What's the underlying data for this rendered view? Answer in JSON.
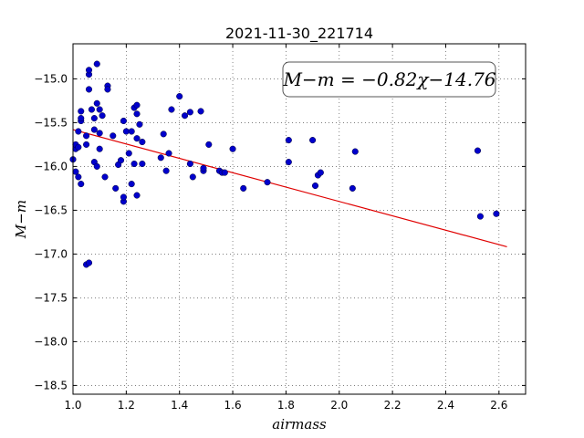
{
  "chart_data": {
    "type": "scatter",
    "title": "2021-11-30_221714",
    "xlabel": "airmass",
    "ylabel": "M−m",
    "xlim": [
      1.0,
      2.7
    ],
    "ylim": [
      -18.6,
      -14.6
    ],
    "xticks": [
      "1.0",
      "1.2",
      "1.4",
      "1.6",
      "1.8",
      "2.0",
      "2.2",
      "2.4",
      "2.6"
    ],
    "yticks": [
      "−15.0",
      "−15.5",
      "−16.0",
      "−16.5",
      "−17.0",
      "−17.5",
      "−18.0",
      "−18.5"
    ],
    "grid": true,
    "annotation": "M−m = −0.82χ−14.76",
    "fit": {
      "slope": -0.82,
      "intercept": -14.76,
      "x_range": [
        1.0,
        2.63
      ],
      "color": "#e00000"
    },
    "point_color": "#0000cc",
    "points": [
      [
        1.0,
        -15.92
      ],
      [
        1.01,
        -16.06
      ],
      [
        1.01,
        -15.8
      ],
      [
        1.01,
        -15.75
      ],
      [
        1.02,
        -15.6
      ],
      [
        1.02,
        -16.12
      ],
      [
        1.02,
        -15.78
      ],
      [
        1.03,
        -15.48
      ],
      [
        1.03,
        -15.45
      ],
      [
        1.03,
        -15.37
      ],
      [
        1.03,
        -16.2
      ],
      [
        1.05,
        -15.65
      ],
      [
        1.05,
        -15.75
      ],
      [
        1.05,
        -17.12
      ],
      [
        1.06,
        -17.1
      ],
      [
        1.06,
        -14.95
      ],
      [
        1.06,
        -14.9
      ],
      [
        1.06,
        -15.12
      ],
      [
        1.07,
        -15.35
      ],
      [
        1.08,
        -15.45
      ],
      [
        1.08,
        -15.95
      ],
      [
        1.08,
        -15.58
      ],
      [
        1.09,
        -14.83
      ],
      [
        1.09,
        -15.28
      ],
      [
        1.09,
        -16.0
      ],
      [
        1.1,
        -15.8
      ],
      [
        1.1,
        -15.62
      ],
      [
        1.1,
        -15.35
      ],
      [
        1.11,
        -15.42
      ],
      [
        1.12,
        -16.12
      ],
      [
        1.13,
        -15.08
      ],
      [
        1.13,
        -15.12
      ],
      [
        1.15,
        -15.65
      ],
      [
        1.16,
        -16.25
      ],
      [
        1.17,
        -15.98
      ],
      [
        1.18,
        -15.93
      ],
      [
        1.19,
        -16.4
      ],
      [
        1.19,
        -16.35
      ],
      [
        1.19,
        -15.48
      ],
      [
        1.2,
        -15.6
      ],
      [
        1.21,
        -15.85
      ],
      [
        1.22,
        -16.2
      ],
      [
        1.22,
        -15.6
      ],
      [
        1.23,
        -15.97
      ],
      [
        1.23,
        -15.33
      ],
      [
        1.24,
        -15.3
      ],
      [
        1.24,
        -15.4
      ],
      [
        1.24,
        -15.68
      ],
      [
        1.24,
        -16.33
      ],
      [
        1.25,
        -15.52
      ],
      [
        1.26,
        -15.72
      ],
      [
        1.26,
        -15.97
      ],
      [
        1.33,
        -15.9
      ],
      [
        1.34,
        -15.63
      ],
      [
        1.35,
        -16.05
      ],
      [
        1.36,
        -15.85
      ],
      [
        1.37,
        -15.35
      ],
      [
        1.4,
        -15.2
      ],
      [
        1.42,
        -15.42
      ],
      [
        1.44,
        -15.38
      ],
      [
        1.44,
        -15.97
      ],
      [
        1.45,
        -16.12
      ],
      [
        1.48,
        -15.37
      ],
      [
        1.49,
        -16.05
      ],
      [
        1.49,
        -16.02
      ],
      [
        1.51,
        -15.75
      ],
      [
        1.55,
        -16.05
      ],
      [
        1.56,
        -16.07
      ],
      [
        1.57,
        -16.07
      ],
      [
        1.6,
        -15.8
      ],
      [
        1.64,
        -16.25
      ],
      [
        1.73,
        -16.18
      ],
      [
        1.81,
        -15.7
      ],
      [
        1.81,
        -15.95
      ],
      [
        1.9,
        -15.7
      ],
      [
        1.91,
        -16.22
      ],
      [
        1.92,
        -16.1
      ],
      [
        1.93,
        -16.07
      ],
      [
        2.05,
        -16.25
      ],
      [
        2.06,
        -15.83
      ],
      [
        2.52,
        -15.82
      ],
      [
        2.53,
        -16.57
      ],
      [
        2.59,
        -16.54
      ]
    ]
  }
}
